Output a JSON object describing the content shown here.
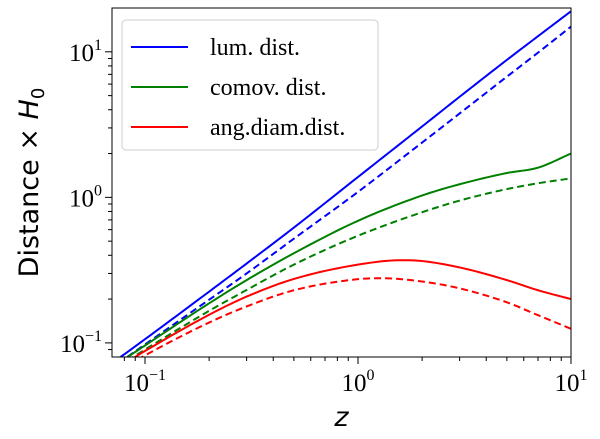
{
  "chart_data": {
    "type": "line",
    "xscale": "log",
    "yscale": "log",
    "xlim": [
      0.07,
      10
    ],
    "ylim": [
      0.08,
      20
    ],
    "xlabel_prefix": "",
    "xlabel_var": "z",
    "ylabel_prefix": "Distance × ",
    "ylabel_var": "H",
    "ylabel_sub": "0",
    "x_ticks": [
      {
        "value": 0.1,
        "base": "10",
        "exp": "−1"
      },
      {
        "value": 1,
        "base": "10",
        "exp": "0"
      },
      {
        "value": 10,
        "base": "10",
        "exp": "1"
      }
    ],
    "y_ticks": [
      {
        "value": 0.1,
        "base": "10",
        "exp": "−1"
      },
      {
        "value": 1,
        "base": "10",
        "exp": "0"
      },
      {
        "value": 10,
        "base": "10",
        "exp": "1"
      }
    ],
    "legend": {
      "position": "upper-left",
      "entries": [
        {
          "label": "lum. dist.",
          "color": "#0000ff"
        },
        {
          "label": "comov. dist.",
          "color": "#008000"
        },
        {
          "label": "ang.diam.dist.",
          "color": "#ff0000"
        }
      ]
    },
    "series": [
      {
        "label_ref": "lum. dist.",
        "color": "#0000ff",
        "dash": "solid",
        "x": [
          0.075,
          0.1,
          0.2,
          0.3,
          0.5,
          1,
          2,
          3,
          5,
          7,
          10
        ],
        "y": [
          0.078,
          0.106,
          0.225,
          0.351,
          0.62,
          1.38,
          3.07,
          4.91,
          8.8,
          12.8,
          19.0
        ]
      },
      {
        "label_ref": "lum. dist.",
        "color": "#0000ff",
        "dash": "dashed",
        "x": [
          0.075,
          0.1,
          0.2,
          0.3,
          0.5,
          1,
          2,
          3,
          5,
          7,
          10
        ],
        "y": [
          0.0725,
          0.0975,
          0.198,
          0.3,
          0.52,
          1.09,
          2.38,
          3.77,
          6.75,
          9.87,
          14.9
        ]
      },
      {
        "label_ref": "comov. dist.",
        "color": "#008000",
        "dash": "solid",
        "x": [
          0.075,
          0.1,
          0.2,
          0.3,
          0.5,
          1,
          2,
          3,
          5,
          7,
          10
        ],
        "y": [
          0.0725,
          0.096,
          0.187,
          0.27,
          0.413,
          0.69,
          1.03,
          1.23,
          1.47,
          1.6,
          2.0
        ]
      },
      {
        "label_ref": "comov. dist.",
        "color": "#008000",
        "dash": "dashed",
        "x": [
          0.075,
          0.1,
          0.2,
          0.3,
          0.5,
          1,
          2,
          3,
          5,
          7,
          10
        ],
        "y": [
          0.069,
          0.09,
          0.166,
          0.231,
          0.345,
          0.545,
          0.79,
          0.95,
          1.14,
          1.25,
          1.35
        ]
      },
      {
        "label_ref": "ang.diam.dist.",
        "color": "#ff0000",
        "dash": "solid",
        "x": [
          0.075,
          0.1,
          0.2,
          0.3,
          0.5,
          1,
          1.6,
          2,
          3,
          5,
          7,
          10
        ],
        "y": [
          0.068,
          0.088,
          0.156,
          0.208,
          0.275,
          0.345,
          0.37,
          0.365,
          0.33,
          0.27,
          0.23,
          0.2
        ]
      },
      {
        "label_ref": "ang.diam.dist.",
        "color": "#ff0000",
        "dash": "dashed",
        "x": [
          0.075,
          0.1,
          0.2,
          0.3,
          0.5,
          1,
          1.3,
          2,
          3,
          5,
          7,
          10
        ],
        "y": [
          0.064,
          0.082,
          0.138,
          0.178,
          0.23,
          0.274,
          0.278,
          0.264,
          0.237,
          0.19,
          0.155,
          0.125
        ]
      }
    ]
  }
}
